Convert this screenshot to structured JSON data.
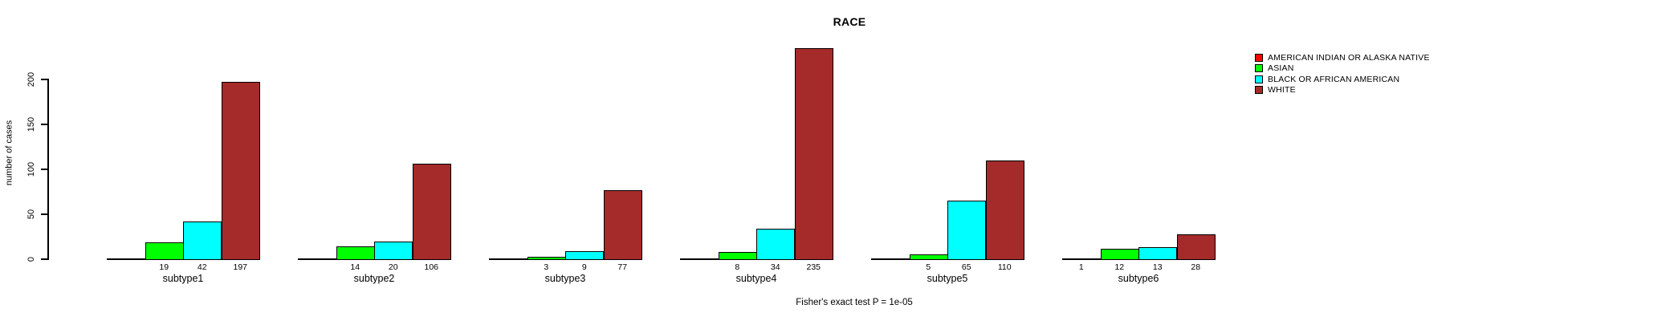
{
  "chart_data": {
    "type": "bar",
    "title": "RACE",
    "ylabel": "number of cases",
    "footnote": "Fisher's exact test P = 1e-05",
    "categories": [
      "subtype1",
      "subtype2",
      "subtype3",
      "subtype4",
      "subtype5",
      "subtype6"
    ],
    "series": [
      {
        "name": "AMERICAN INDIAN OR ALASKA NATIVE",
        "color": "#ff0000",
        "values": [
          null,
          null,
          null,
          null,
          null,
          1
        ]
      },
      {
        "name": "ASIAN",
        "color": "#00ff00",
        "values": [
          19,
          14,
          3,
          8,
          5,
          12
        ]
      },
      {
        "name": "BLACK OR AFRICAN AMERICAN",
        "color": "#00ffff",
        "values": [
          42,
          20,
          9,
          34,
          65,
          13
        ]
      },
      {
        "name": "WHITE",
        "color": "#a52a2a",
        "values": [
          197,
          106,
          77,
          235,
          110,
          28
        ]
      }
    ],
    "y_axis": {
      "ticks": [
        0,
        50,
        100,
        150,
        200
      ],
      "range": [
        0,
        235
      ]
    },
    "bar_value_labels": true,
    "legend_position": "right",
    "grid": false
  }
}
